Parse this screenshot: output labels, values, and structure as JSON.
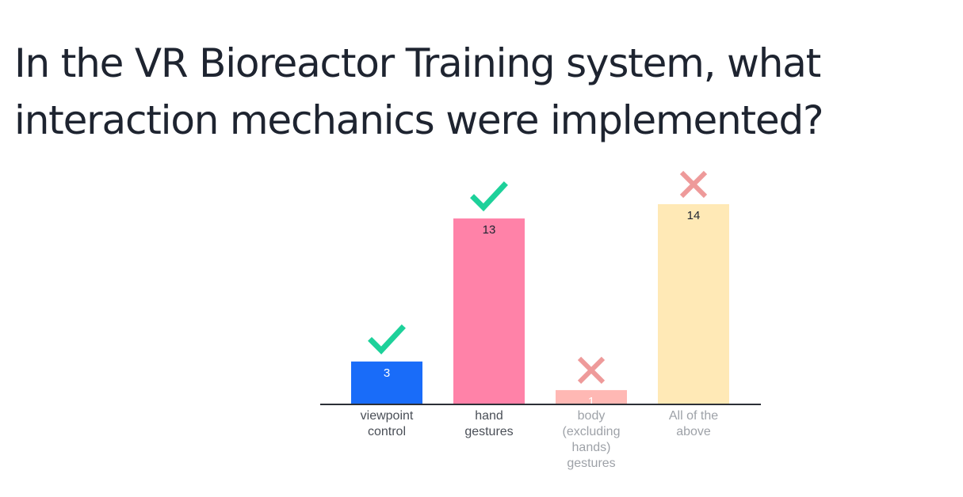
{
  "question": {
    "title": "In the VR Bioreactor Training system, what interaction mechanics were implemented?"
  },
  "chart_data": {
    "type": "bar",
    "categories": [
      "viewpoint control",
      "hand gestures",
      "body (excluding hands) gestures",
      "All of the above"
    ],
    "category_lines": [
      [
        "viewpoint",
        "control"
      ],
      [
        "hand",
        "gestures"
      ],
      [
        "body",
        "(excluding",
        "hands)",
        "gestures"
      ],
      [
        "All of the",
        "above"
      ]
    ],
    "values": [
      3,
      13,
      1,
      14
    ],
    "value_labels": [
      "3",
      "13",
      "1",
      "14"
    ],
    "correct": [
      true,
      true,
      false,
      false
    ],
    "colors": [
      "#196cf9",
      "#ff82a8",
      "#ffb8b4",
      "#ffe9b6"
    ],
    "value_label_colors": [
      "#ffffff",
      "#1e2430",
      "#ffffff",
      "#1e2430"
    ],
    "category_label_colors": [
      "#4a4f57",
      "#4a4f57",
      "#9ea2a8",
      "#9ea2a8"
    ],
    "marker_colors": {
      "correct": "#1dd19a",
      "incorrect": "#ee9a9a"
    },
    "xlabel": "",
    "ylabel": "",
    "ylim": [
      0,
      14
    ],
    "grid": false,
    "legend": "none"
  }
}
